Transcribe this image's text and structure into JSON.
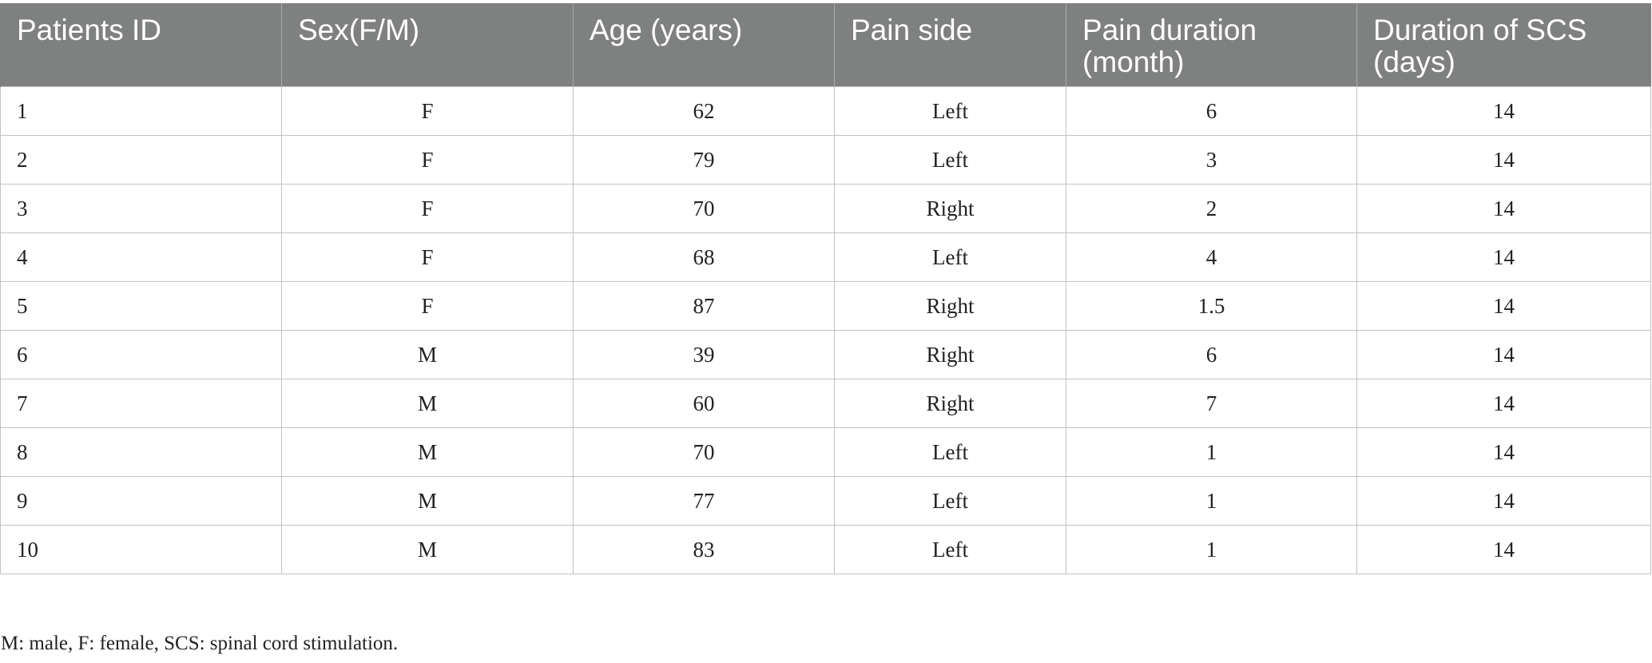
{
  "table": {
    "headers": [
      "Patients ID",
      "Sex(F/M)",
      "Age (years)",
      "Pain side",
      "Pain duration (month)",
      "Duration of SCS (days)"
    ],
    "rows": [
      [
        "1",
        "F",
        "62",
        "Left",
        "6",
        "14"
      ],
      [
        "2",
        "F",
        "79",
        "Left",
        "3",
        "14"
      ],
      [
        "3",
        "F",
        "70",
        "Right",
        "2",
        "14"
      ],
      [
        "4",
        "F",
        "68",
        "Left",
        "4",
        "14"
      ],
      [
        "5",
        "F",
        "87",
        "Right",
        "1.5",
        "14"
      ],
      [
        "6",
        "M",
        "39",
        "Right",
        "6",
        "14"
      ],
      [
        "7",
        "M",
        "60",
        "Right",
        "7",
        "14"
      ],
      [
        "8",
        "M",
        "70",
        "Left",
        "1",
        "14"
      ],
      [
        "9",
        "M",
        "77",
        "Left",
        "1",
        "14"
      ],
      [
        "10",
        "M",
        "83",
        "Left",
        "1",
        "14"
      ]
    ]
  },
  "footnote": "M: male, F: female, SCS: spinal cord stimulation.",
  "colors": {
    "header_bg": "#7f8180",
    "header_text": "#ffffff",
    "grid": "#c2c2c2"
  }
}
